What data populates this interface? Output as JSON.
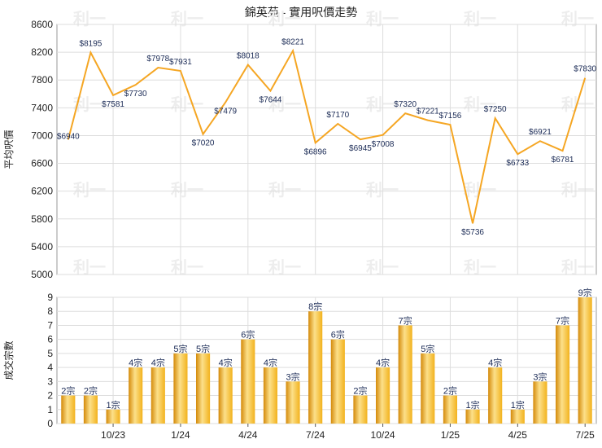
{
  "title": "錦英苑 - 實用呎價走勢",
  "watermark": "利一",
  "colors": {
    "line": "#F5A623",
    "bar": "#F2B21D",
    "bar_highlight": "#FCE08A",
    "bar_shadow": "#D48A0A",
    "grid": "#DDDDDD",
    "axis": "#555555",
    "text": "#222222",
    "label": "#1A2A55",
    "watermark": "#EDEDED"
  },
  "chart_data": [
    {
      "type": "line",
      "ylabel": "平均呎價",
      "ylim": [
        5000,
        8600
      ],
      "yticks": [
        5000,
        5400,
        5800,
        6200,
        6600,
        7000,
        7400,
        7800,
        8200,
        8600
      ],
      "grid": true,
      "values": [
        6940,
        8195,
        7581,
        7730,
        7978,
        7931,
        7020,
        7479,
        8018,
        7644,
        8221,
        6896,
        7170,
        6945,
        7008,
        7320,
        7221,
        7156,
        5736,
        7250,
        6733,
        6921,
        6781,
        7830
      ],
      "labels": [
        "$6940",
        "$8195",
        "$7581",
        "$7730",
        "$7978",
        "$7931",
        "$7020",
        "$7479",
        "$8018",
        "$7644",
        "$8221",
        "$6896",
        "$7170",
        "$6945",
        "$7008",
        "$7320",
        "$7221",
        "$7156",
        "$5736",
        "$7250",
        "$6733",
        "$6921",
        "$6781",
        "$7830"
      ]
    },
    {
      "type": "bar",
      "ylabel": "成交宗數",
      "ylim": [
        0,
        9
      ],
      "yticks": [
        0,
        1,
        2,
        3,
        4,
        5,
        6,
        7,
        8,
        9
      ],
      "grid": true,
      "values": [
        2,
        2,
        1,
        4,
        4,
        5,
        5,
        4,
        6,
        4,
        3,
        8,
        6,
        2,
        4,
        7,
        5,
        2,
        1,
        4,
        1,
        3,
        7,
        9
      ],
      "labels": [
        "2宗",
        "2宗",
        "1宗",
        "4宗",
        "4宗",
        "5宗",
        "5宗",
        "4宗",
        "6宗",
        "4宗",
        "3宗",
        "8宗",
        "6宗",
        "2宗",
        "4宗",
        "7宗",
        "5宗",
        "2宗",
        "1宗",
        "4宗",
        "1宗",
        "3宗",
        "7宗",
        "9宗"
      ]
    }
  ],
  "x_ticks": [
    {
      "label": "10/23",
      "index": 2
    },
    {
      "label": "1/24",
      "index": 5
    },
    {
      "label": "4/24",
      "index": 8
    },
    {
      "label": "7/24",
      "index": 11
    },
    {
      "label": "10/24",
      "index": 14
    },
    {
      "label": "1/25",
      "index": 17
    },
    {
      "label": "4/25",
      "index": 20
    },
    {
      "label": "7/25",
      "index": 23
    }
  ]
}
